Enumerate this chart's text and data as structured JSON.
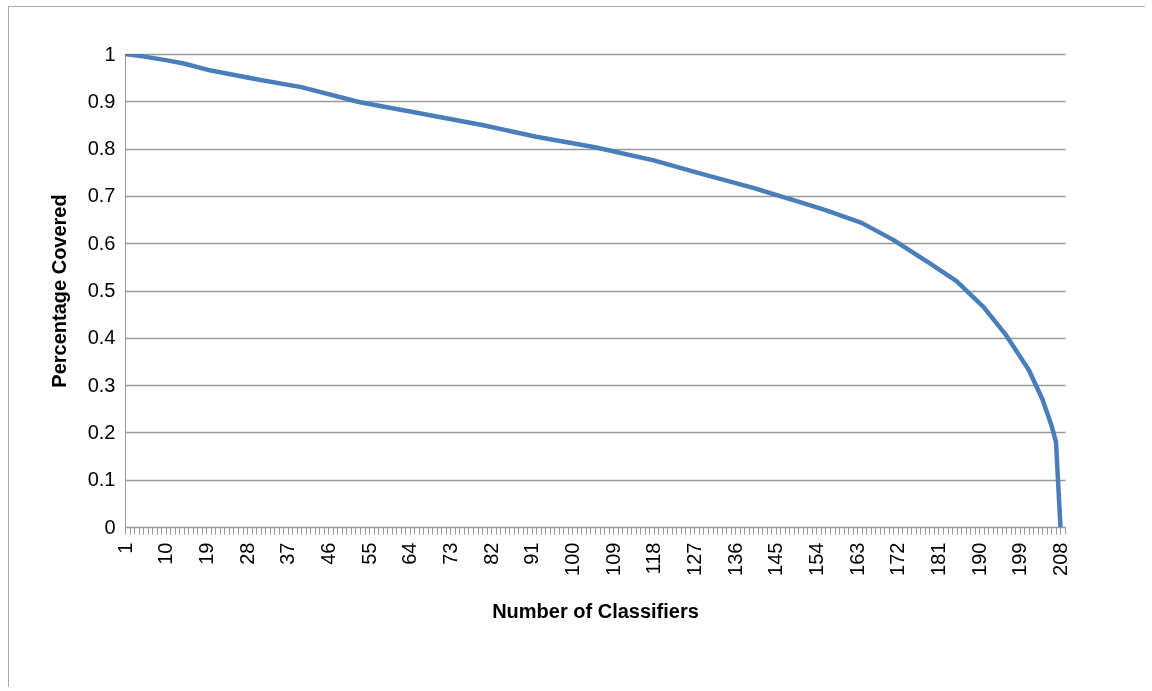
{
  "chart_data": {
    "type": "line",
    "xlabel": "Number of Classifiers",
    "ylabel": "Percentage Covered",
    "series": [
      {
        "color": "#4a7ebb",
        "x": [
          1,
          5,
          10,
          14,
          20,
          31,
          40,
          53,
          65,
          80,
          92,
          105,
          118,
          128,
          140,
          150,
          156,
          164,
          171,
          179,
          185,
          191,
          196,
          201,
          204,
          206,
          207,
          208
        ],
        "values": [
          1.0,
          0.995,
          0.987,
          0.98,
          0.965,
          0.945,
          0.93,
          0.898,
          0.877,
          0.85,
          0.825,
          0.803,
          0.775,
          0.748,
          0.717,
          0.688,
          0.67,
          0.643,
          0.607,
          0.558,
          0.52,
          0.465,
          0.405,
          0.332,
          0.27,
          0.215,
          0.18,
          0
        ]
      }
    ],
    "xlim": [
      1,
      209
    ],
    "xticks": [
      1,
      {
        "value": 2,
        "label": null
      },
      {
        "value": 3,
        "label": null
      },
      {
        "value": 4,
        "label": null
      },
      {
        "value": 5,
        "label": null
      },
      {
        "value": 6,
        "label": null
      },
      {
        "value": 7,
        "label": null
      },
      {
        "value": 8,
        "label": null
      },
      {
        "value": 9,
        "label": null
      },
      10,
      {
        "value": 11,
        "label": null
      },
      {
        "value": 12,
        "label": null
      },
      {
        "value": 13,
        "label": null
      },
      {
        "value": 14,
        "label": null
      },
      {
        "value": 15,
        "label": null
      },
      {
        "value": 16,
        "label": null
      },
      {
        "value": 17,
        "label": null
      },
      {
        "value": 18,
        "label": null
      },
      19,
      {
        "value": 20,
        "label": null
      },
      {
        "value": 21,
        "label": null
      },
      {
        "value": 22,
        "label": null
      },
      {
        "value": 23,
        "label": null
      },
      {
        "value": 24,
        "label": null
      },
      {
        "value": 25,
        "label": null
      },
      {
        "value": 26,
        "label": null
      },
      {
        "value": 27,
        "label": null
      },
      28,
      {
        "value": 29,
        "label": null
      },
      {
        "value": 30,
        "label": null
      },
      {
        "value": 31,
        "label": null
      },
      {
        "value": 32,
        "label": null
      },
      {
        "value": 33,
        "label": null
      },
      {
        "value": 34,
        "label": null
      },
      {
        "value": 35,
        "label": null
      },
      {
        "value": 36,
        "label": null
      },
      37,
      {
        "value": 38,
        "label": null
      },
      {
        "value": 39,
        "label": null
      },
      {
        "value": 40,
        "label": null
      },
      {
        "value": 41,
        "label": null
      },
      {
        "value": 42,
        "label": null
      },
      {
        "value": 43,
        "label": null
      },
      {
        "value": 44,
        "label": null
      },
      {
        "value": 45,
        "label": null
      },
      46,
      {
        "value": 47,
        "label": null
      },
      {
        "value": 48,
        "label": null
      },
      {
        "value": 49,
        "label": null
      },
      {
        "value": 50,
        "label": null
      },
      {
        "value": 51,
        "label": null
      },
      {
        "value": 52,
        "label": null
      },
      {
        "value": 53,
        "label": null
      },
      {
        "value": 54,
        "label": null
      },
      55,
      {
        "value": 56,
        "label": null
      },
      {
        "value": 57,
        "label": null
      },
      {
        "value": 58,
        "label": null
      },
      {
        "value": 59,
        "label": null
      },
      {
        "value": 60,
        "label": null
      },
      {
        "value": 61,
        "label": null
      },
      {
        "value": 62,
        "label": null
      },
      {
        "value": 63,
        "label": null
      },
      64,
      {
        "value": 65,
        "label": null
      },
      {
        "value": 66,
        "label": null
      },
      {
        "value": 67,
        "label": null
      },
      {
        "value": 68,
        "label": null
      },
      {
        "value": 69,
        "label": null
      },
      {
        "value": 70,
        "label": null
      },
      {
        "value": 71,
        "label": null
      },
      {
        "value": 72,
        "label": null
      },
      73,
      {
        "value": 74,
        "label": null
      },
      {
        "value": 75,
        "label": null
      },
      {
        "value": 76,
        "label": null
      },
      {
        "value": 77,
        "label": null
      },
      {
        "value": 78,
        "label": null
      },
      {
        "value": 79,
        "label": null
      },
      {
        "value": 80,
        "label": null
      },
      {
        "value": 81,
        "label": null
      },
      82,
      {
        "value": 83,
        "label": null
      },
      {
        "value": 84,
        "label": null
      },
      {
        "value": 85,
        "label": null
      },
      {
        "value": 86,
        "label": null
      },
      {
        "value": 87,
        "label": null
      },
      {
        "value": 88,
        "label": null
      },
      {
        "value": 89,
        "label": null
      },
      {
        "value": 90,
        "label": null
      },
      91,
      {
        "value": 92,
        "label": null
      },
      {
        "value": 93,
        "label": null
      },
      {
        "value": 94,
        "label": null
      },
      {
        "value": 95,
        "label": null
      },
      {
        "value": 96,
        "label": null
      },
      {
        "value": 97,
        "label": null
      },
      {
        "value": 98,
        "label": null
      },
      {
        "value": 99,
        "label": null
      },
      100,
      {
        "value": 101,
        "label": null
      },
      {
        "value": 102,
        "label": null
      },
      {
        "value": 103,
        "label": null
      },
      {
        "value": 104,
        "label": null
      },
      {
        "value": 105,
        "label": null
      },
      {
        "value": 106,
        "label": null
      },
      {
        "value": 107,
        "label": null
      },
      {
        "value": 108,
        "label": null
      },
      109,
      {
        "value": 110,
        "label": null
      },
      {
        "value": 111,
        "label": null
      },
      {
        "value": 112,
        "label": null
      },
      {
        "value": 113,
        "label": null
      },
      {
        "value": 114,
        "label": null
      },
      {
        "value": 115,
        "label": null
      },
      {
        "value": 116,
        "label": null
      },
      {
        "value": 117,
        "label": null
      },
      118,
      {
        "value": 119,
        "label": null
      },
      {
        "value": 120,
        "label": null
      },
      {
        "value": 121,
        "label": null
      },
      {
        "value": 122,
        "label": null
      },
      {
        "value": 123,
        "label": null
      },
      {
        "value": 124,
        "label": null
      },
      {
        "value": 125,
        "label": null
      },
      {
        "value": 126,
        "label": null
      },
      127,
      {
        "value": 128,
        "label": null
      },
      {
        "value": 129,
        "label": null
      },
      {
        "value": 130,
        "label": null
      },
      {
        "value": 131,
        "label": null
      },
      {
        "value": 132,
        "label": null
      },
      {
        "value": 133,
        "label": null
      },
      {
        "value": 134,
        "label": null
      },
      {
        "value": 135,
        "label": null
      },
      136,
      {
        "value": 137,
        "label": null
      },
      {
        "value": 138,
        "label": null
      },
      {
        "value": 139,
        "label": null
      },
      {
        "value": 140,
        "label": null
      },
      {
        "value": 141,
        "label": null
      },
      {
        "value": 142,
        "label": null
      },
      {
        "value": 143,
        "label": null
      },
      {
        "value": 144,
        "label": null
      },
      145,
      {
        "value": 146,
        "label": null
      },
      {
        "value": 147,
        "label": null
      },
      {
        "value": 148,
        "label": null
      },
      {
        "value": 149,
        "label": null
      },
      {
        "value": 150,
        "label": null
      },
      {
        "value": 151,
        "label": null
      },
      {
        "value": 152,
        "label": null
      },
      {
        "value": 153,
        "label": null
      },
      154,
      {
        "value": 155,
        "label": null
      },
      {
        "value": 156,
        "label": null
      },
      {
        "value": 157,
        "label": null
      },
      {
        "value": 158,
        "label": null
      },
      {
        "value": 159,
        "label": null
      },
      {
        "value": 160,
        "label": null
      },
      {
        "value": 161,
        "label": null
      },
      {
        "value": 162,
        "label": null
      },
      163,
      {
        "value": 164,
        "label": null
      },
      {
        "value": 165,
        "label": null
      },
      {
        "value": 166,
        "label": null
      },
      {
        "value": 167,
        "label": null
      },
      {
        "value": 168,
        "label": null
      },
      {
        "value": 169,
        "label": null
      },
      {
        "value": 170,
        "label": null
      },
      {
        "value": 171,
        "label": null
      },
      172,
      {
        "value": 173,
        "label": null
      },
      {
        "value": 174,
        "label": null
      },
      {
        "value": 175,
        "label": null
      },
      {
        "value": 176,
        "label": null
      },
      {
        "value": 177,
        "label": null
      },
      {
        "value": 178,
        "label": null
      },
      {
        "value": 179,
        "label": null
      },
      {
        "value": 180,
        "label": null
      },
      181,
      {
        "value": 182,
        "label": null
      },
      {
        "value": 183,
        "label": null
      },
      {
        "value": 184,
        "label": null
      },
      {
        "value": 185,
        "label": null
      },
      {
        "value": 186,
        "label": null
      },
      {
        "value": 187,
        "label": null
      },
      {
        "value": 188,
        "label": null
      },
      {
        "value": 189,
        "label": null
      },
      190,
      {
        "value": 191,
        "label": null
      },
      {
        "value": 192,
        "label": null
      },
      {
        "value": 193,
        "label": null
      },
      {
        "value": 194,
        "label": null
      },
      {
        "value": 195,
        "label": null
      },
      {
        "value": 196,
        "label": null
      },
      {
        "value": 197,
        "label": null
      },
      {
        "value": 198,
        "label": null
      },
      199,
      {
        "value": 200,
        "label": null
      },
      {
        "value": 201,
        "label": null
      },
      {
        "value": 202,
        "label": null
      },
      {
        "value": 203,
        "label": null
      },
      {
        "value": 204,
        "label": null
      },
      {
        "value": 205,
        "label": null
      },
      {
        "value": 206,
        "label": null
      },
      {
        "value": 207,
        "label": null
      },
      208,
      {
        "value": 209,
        "label": null
      }
    ],
    "ylim": [
      0,
      1
    ],
    "yticks": [
      0,
      0.1,
      0.2,
      0.3,
      0.4,
      0.5,
      0.6,
      0.7,
      0.8,
      0.9,
      1
    ],
    "grid": "y"
  }
}
